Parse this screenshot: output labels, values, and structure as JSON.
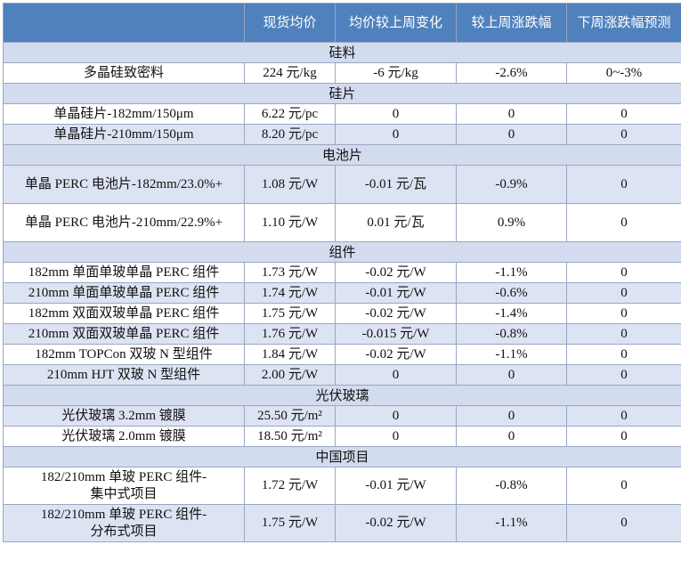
{
  "header": [
    "",
    "现货均价",
    "均价较上周变化",
    "较上周涨跌幅",
    "下周涨跌幅预测"
  ],
  "sections": [
    {
      "title": "硅料",
      "rows": [
        {
          "cells": [
            "多晶硅致密料",
            "224 元/kg",
            "-6 元/kg",
            "-2.6%",
            "0~-3%"
          ]
        }
      ]
    },
    {
      "title": "硅片",
      "rows": [
        {
          "cells": [
            "单晶硅片-182mm/150μm",
            "6.22 元/pc",
            "0",
            "0",
            "0"
          ]
        },
        {
          "cells": [
            "单晶硅片-210mm/150μm",
            "8.20 元/pc",
            "0",
            "0",
            "0"
          ]
        }
      ]
    },
    {
      "title": "电池片",
      "rows": [
        {
          "cells": [
            "单晶 PERC 电池片-182mm/23.0%+",
            "1.08 元/W",
            "-0.01 元/瓦",
            "-0.9%",
            "0"
          ]
        },
        {
          "cells": [
            "单晶 PERC 电池片-210mm/22.9%+",
            "1.10 元/W",
            "0.01 元/瓦",
            "0.9%",
            "0"
          ]
        }
      ]
    },
    {
      "title": "组件",
      "rows": [
        {
          "cells": [
            "182mm 单面单玻单晶 PERC 组件",
            "1.73 元/W",
            "-0.02 元/W",
            "-1.1%",
            "0"
          ]
        },
        {
          "cells": [
            "210mm 单面单玻单晶 PERC 组件",
            "1.74 元/W",
            "-0.01 元/W",
            "-0.6%",
            "0"
          ]
        },
        {
          "cells": [
            "182mm 双面双玻单晶 PERC 组件",
            "1.75 元/W",
            "-0.02 元/W",
            "-1.4%",
            "0"
          ]
        },
        {
          "cells": [
            "210mm 双面双玻单晶 PERC 组件",
            "1.76 元/W",
            "-0.015 元/W",
            "-0.8%",
            "0"
          ]
        },
        {
          "cells": [
            "182mm TOPCon 双玻 N 型组件",
            "1.84 元/W",
            "-0.02 元/W",
            "-1.1%",
            "0"
          ]
        },
        {
          "cells": [
            "210mm HJT 双玻 N 型组件",
            "2.00 元/W",
            "0",
            "0",
            "0"
          ]
        }
      ]
    },
    {
      "title": "光伏玻璃",
      "rows": [
        {
          "cells": [
            "光伏玻璃 3.2mm 镀膜",
            "25.50 元/m²",
            "0",
            "0",
            "0"
          ]
        },
        {
          "cells": [
            "光伏玻璃 2.0mm 镀膜",
            "18.50 元/m²",
            "0",
            "0",
            "0"
          ]
        }
      ]
    },
    {
      "title": "中国项目",
      "rows": [
        {
          "cells": [
            "182/210mm  单玻 PERC 组件-\n集中式项目",
            "1.72 元/W",
            "-0.01 元/W",
            "-0.8%",
            "0"
          ]
        },
        {
          "cells": [
            "182/210mm  单玻 PERC 组件-\n分布式项目",
            "1.75 元/W",
            "-0.02 元/W",
            "-1.1%",
            "0"
          ]
        }
      ]
    }
  ]
}
